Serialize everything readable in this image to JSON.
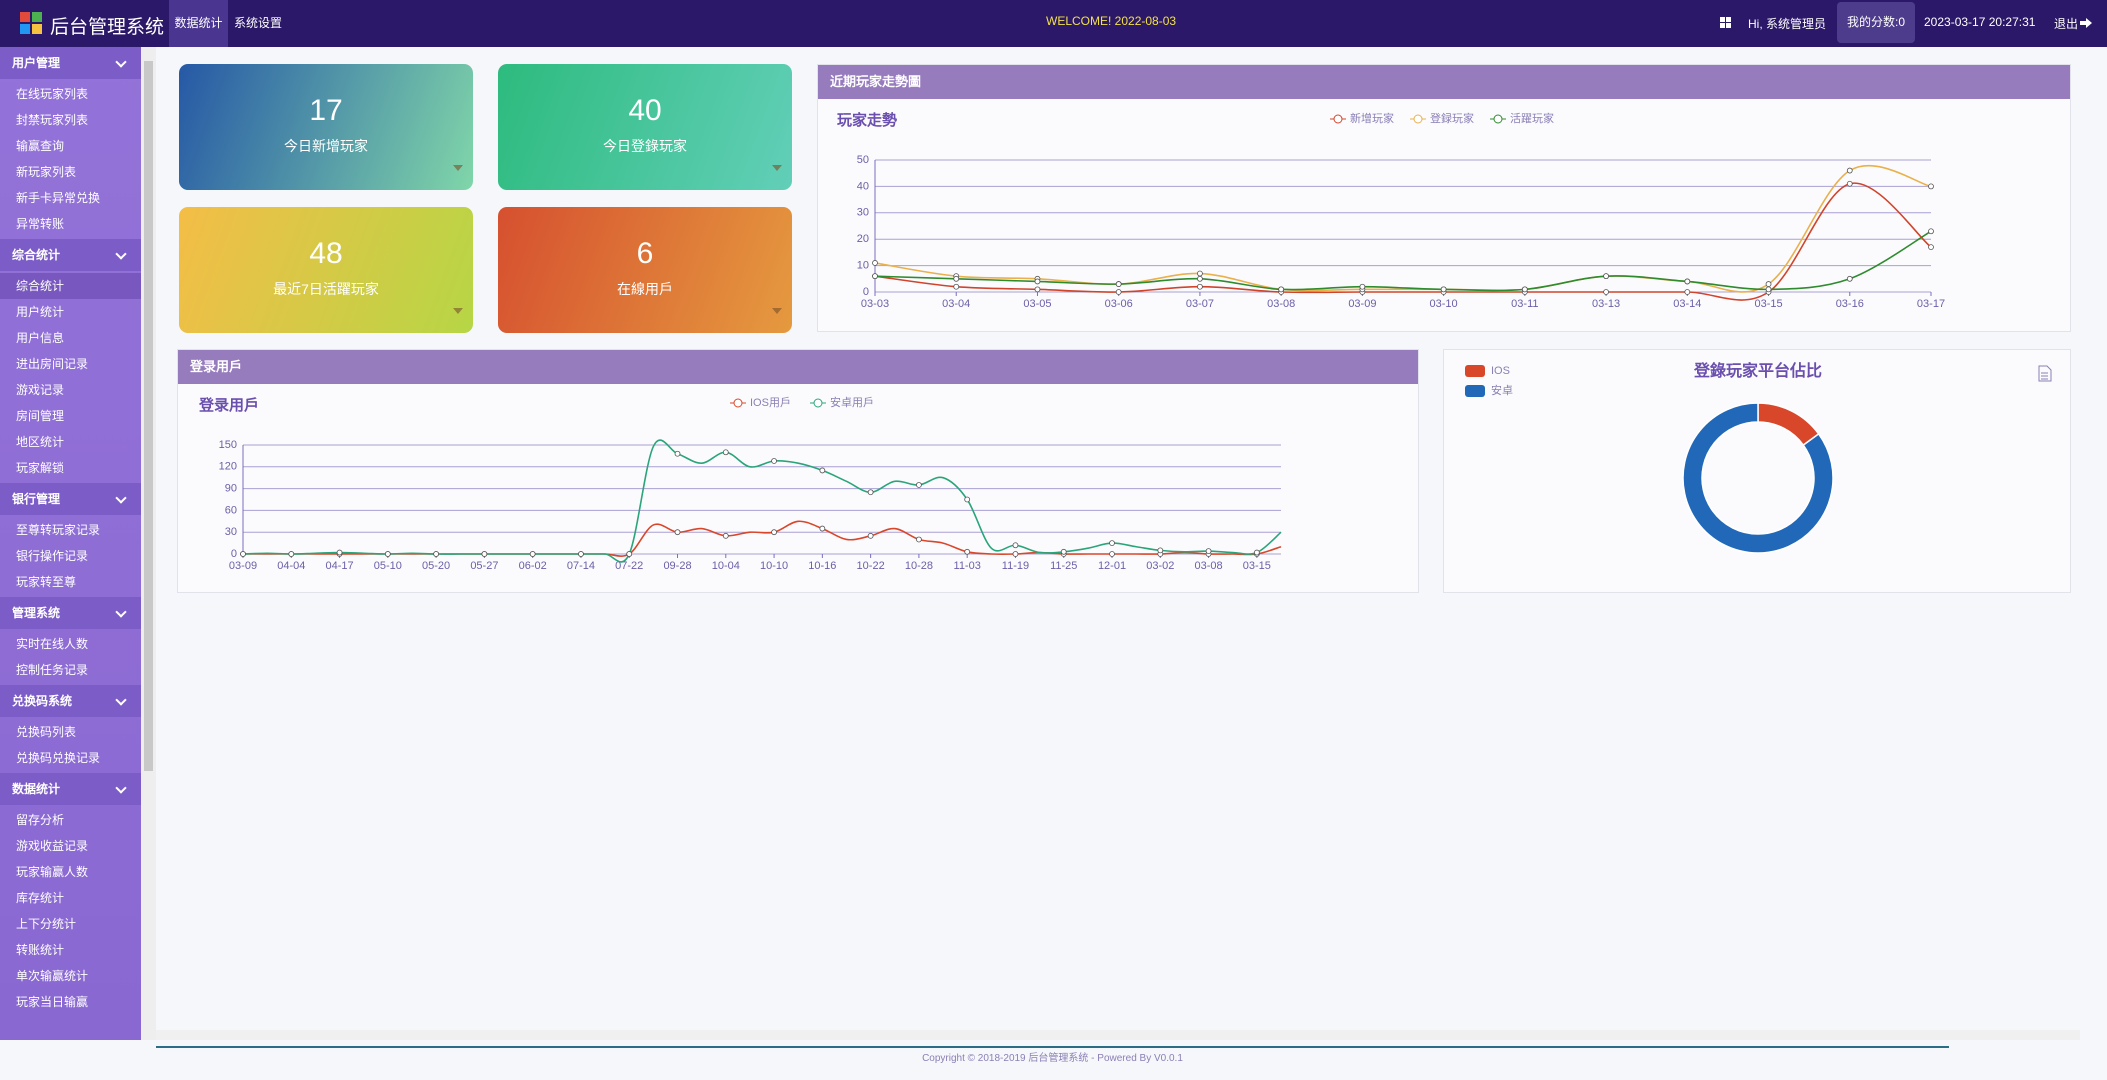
{
  "header": {
    "title": "后台管理系统",
    "tabs": [
      "数据统计",
      "系统设置"
    ],
    "welcome": "WELCOME! 2022-08-03",
    "greeting": "Hi, 系统管理员",
    "score": "我的分数:0",
    "datetime": "2023-03-17 20:27:31",
    "logout": "退出"
  },
  "sidebar": [
    {
      "title": "用户管理",
      "items": [
        "在线玩家列表",
        "封禁玩家列表",
        "输赢查询",
        "新玩家列表",
        "新手卡异常兑换",
        "异常转账"
      ]
    },
    {
      "title": "综合统计",
      "items": [
        "综合统计",
        "用户统计",
        "用户信息",
        "进出房间记录",
        "游戏记录",
        "房间管理",
        "地区统计",
        "玩家解锁"
      ]
    },
    {
      "title": "银行管理",
      "items": [
        "至尊转玩家记录",
        "银行操作记录",
        "玩家转至尊"
      ]
    },
    {
      "title": "管理系统",
      "items": [
        "实时在线人数",
        "控制任务记录"
      ]
    },
    {
      "title": "兑换码系统",
      "items": [
        "兑换码列表",
        "兑换码兑换记录"
      ]
    },
    {
      "title": "数据统计",
      "items": [
        "留存分析",
        "游戏收益记录",
        "玩家输赢人数",
        "库存统计",
        "上下分统计",
        "转账统计",
        "单次输赢统计",
        "玩家当日输赢"
      ]
    }
  ],
  "cards": [
    {
      "value": 17,
      "label": "今日新增玩家"
    },
    {
      "value": 40,
      "label": "今日登錄玩家"
    },
    {
      "value": 48,
      "label": "最近7日活躍玩家"
    },
    {
      "value": 6,
      "label": "在線用戶"
    }
  ],
  "panels": [
    {
      "header": "近期玩家走勢圖"
    },
    {
      "header": "登录用戶"
    }
  ],
  "chart_data": [
    {
      "type": "line",
      "title": "玩家走勢",
      "categories": [
        "03-03",
        "03-04",
        "03-05",
        "03-06",
        "03-07",
        "03-08",
        "03-09",
        "03-10",
        "03-11",
        "03-13",
        "03-14",
        "03-15",
        "03-16",
        "03-17"
      ],
      "series": [
        {
          "name": "新增玩家",
          "color": "#d0442c",
          "values": [
            6,
            2,
            1,
            0,
            2,
            0,
            0,
            0,
            0,
            0,
            0,
            0,
            41,
            17
          ]
        },
        {
          "name": "登録玩家",
          "color": "#e9b04c",
          "values": [
            11,
            6,
            5,
            3,
            7,
            1,
            1,
            1,
            1,
            6,
            4,
            3,
            46,
            40
          ]
        },
        {
          "name": "活躍玩家",
          "color": "#2e8b2e",
          "values": [
            6,
            5,
            4,
            3,
            5,
            1,
            2,
            1,
            1,
            6,
            4,
            1,
            5,
            23
          ]
        }
      ],
      "ylim": [
        0,
        50
      ],
      "yticks": [
        0,
        10,
        20,
        30,
        40,
        50
      ],
      "grid": true,
      "legend": "top"
    },
    {
      "type": "line",
      "title": "登录用戶",
      "categories": [
        "03-09",
        null,
        "04-04",
        null,
        "04-17",
        null,
        "05-10",
        null,
        "05-20",
        null,
        "05-27",
        null,
        "06-02",
        null,
        "07-14",
        null,
        "07-22",
        null,
        "09-28",
        null,
        "10-04",
        null,
        "10-10",
        null,
        "10-16",
        null,
        "10-22",
        null,
        "10-28",
        null,
        "11-03",
        null,
        "11-19",
        null,
        "11-25",
        null,
        "12-01",
        null,
        "03-02",
        null,
        "03-08",
        null,
        "03-15",
        null
      ],
      "series": [
        {
          "name": "IOS用戶",
          "color": "#d9472b",
          "values": [
            0,
            0,
            0,
            0,
            0,
            0,
            0,
            0,
            0,
            0,
            0,
            0,
            0,
            0,
            0,
            0,
            0,
            40,
            30,
            35,
            25,
            30,
            30,
            45,
            35,
            20,
            25,
            35,
            20,
            15,
            3,
            0,
            0,
            2,
            0,
            0,
            0,
            0,
            0,
            2,
            0,
            0,
            0,
            10
          ]
        },
        {
          "name": "安卓用戶",
          "color": "#2aa57a",
          "values": [
            0,
            1,
            0,
            1,
            2,
            1,
            0,
            1,
            0,
            0,
            0,
            0,
            0,
            0,
            0,
            0,
            0,
            148,
            138,
            125,
            140,
            120,
            128,
            125,
            115,
            100,
            85,
            100,
            95,
            105,
            75,
            8,
            12,
            2,
            3,
            8,
            15,
            10,
            5,
            3,
            4,
            2,
            2,
            30
          ]
        }
      ],
      "ylim": [
        0,
        150
      ],
      "yticks": [
        0,
        30,
        60,
        90,
        120,
        150
      ],
      "grid": true,
      "legend": "top"
    },
    {
      "type": "donut",
      "title": "登錄玩家平台佔比",
      "categories": [
        "IOS",
        "安卓"
      ],
      "values": [
        15,
        85
      ],
      "colors": [
        "#d9472b",
        "#2168b8"
      ],
      "legend": "top-left"
    }
  ],
  "footer": "Copyright © 2018-2019 后台管理系统 - Powered By V0.0.1"
}
